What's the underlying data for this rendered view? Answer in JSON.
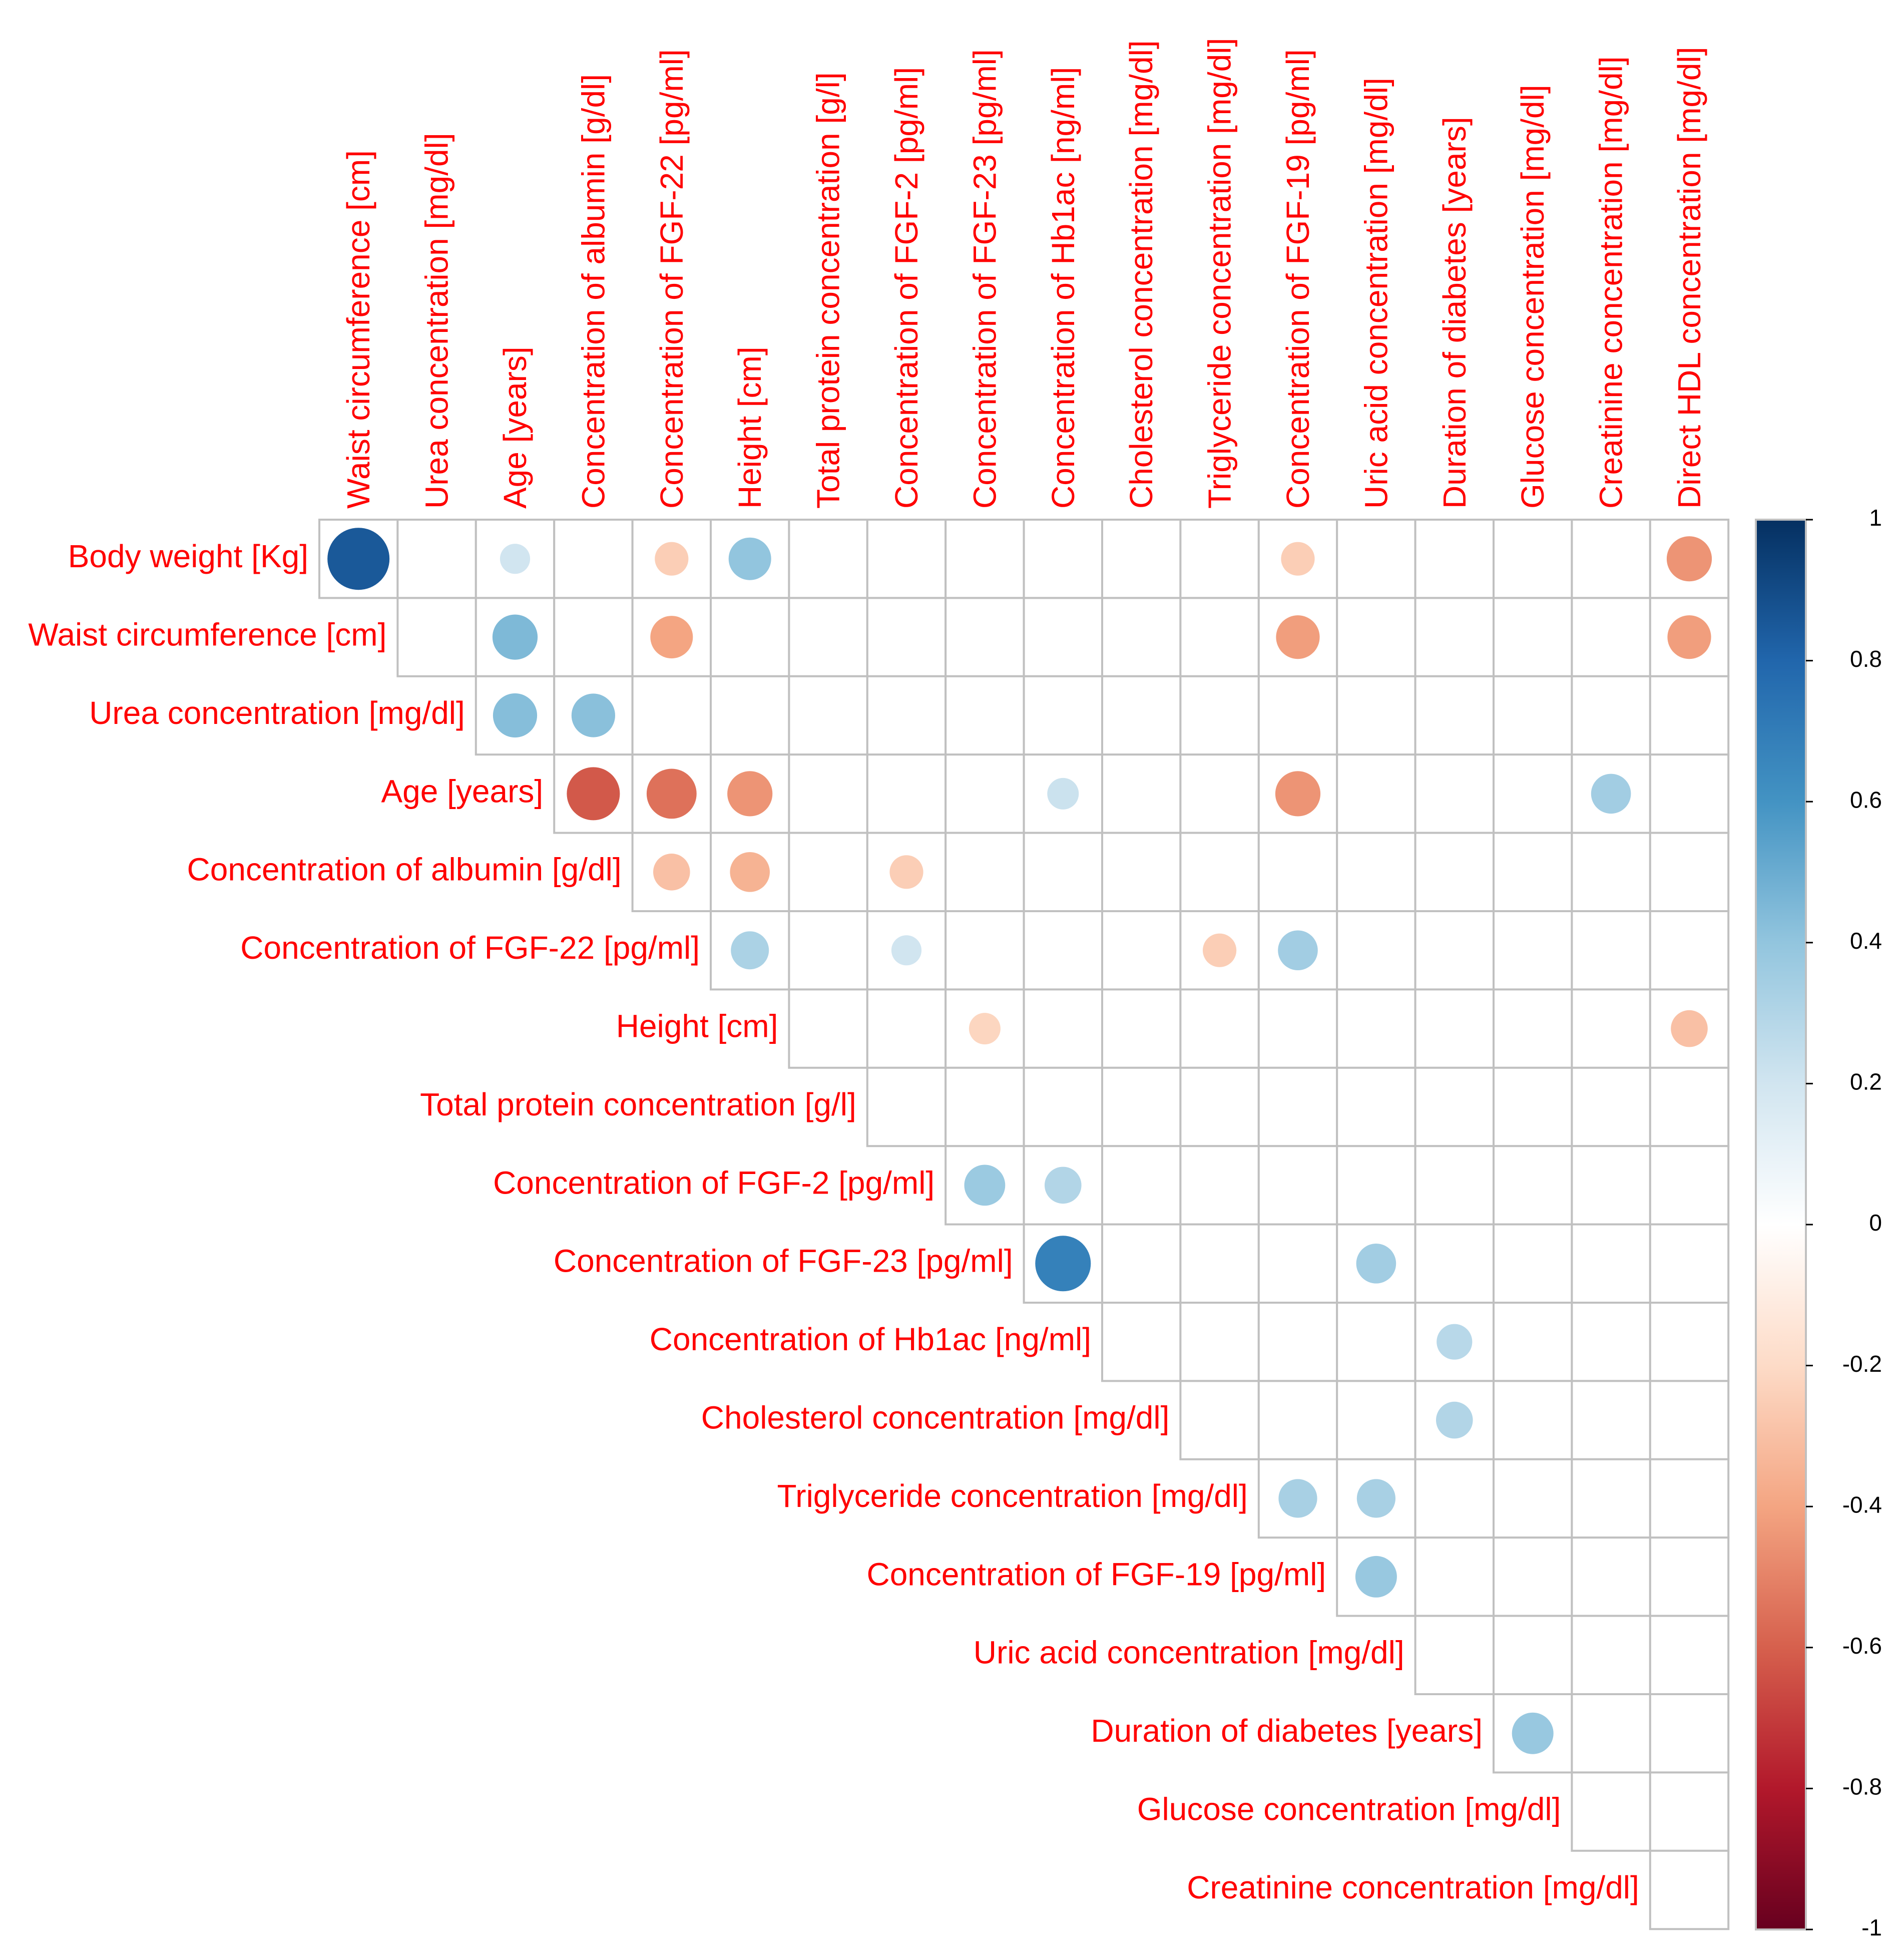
{
  "chart_data": {
    "type": "heatmap",
    "subtype": "correlation-matrix-upper-triangle-circles",
    "variables": [
      "Body weight [Kg]",
      "Waist circumference [cm]",
      "Urea concentration [mg/dl]",
      "Age [years]",
      "Concentration of albumin [g/dl]",
      "Concentration of FGF-22 [pg/ml]",
      "Height [cm]",
      "Total protein concentration [g/l]",
      "Concentration of FGF-2 [pg/ml]",
      "Concentration of FGF-23 [pg/ml]",
      "Concentration of Hb1ac [ng/ml]",
      "Cholesterol concentration [mg/dl]",
      "Triglyceride concentration  [mg/dl]",
      "Concentration of FGF-19 [pg/ml]",
      "Uric acid concentration  [mg/dl]",
      "Duration of diabetes [years]",
      "Glucose concentration  [mg/dl]",
      "Creatinine concentration  [mg/dl]",
      "Direct HDL concentration  [mg/dl]"
    ],
    "row_labels": [
      "Body weight [Kg]",
      "Waist circumference [cm]",
      "Urea concentration [mg/dl]",
      "Age [years]",
      "Concentration of albumin [g/dl]",
      "Concentration of FGF-22 [pg/ml]",
      "Height [cm]",
      "Total protein concentration [g/l]",
      "Concentration of FGF-2 [pg/ml]",
      "Concentration of FGF-23 [pg/ml]",
      "Concentration of Hb1ac [ng/ml]",
      "Cholesterol concentration [mg/dl]",
      "Triglyceride concentration  [mg/dl]",
      "Concentration of FGF-19 [pg/ml]",
      "Uric acid concentration  [mg/dl]",
      "Duration of diabetes [years]",
      "Glucose concentration  [mg/dl]",
      "Creatinine concentration  [mg/dl]"
    ],
    "col_labels": [
      "Waist circumference [cm]",
      "Urea concentration [mg/dl]",
      "Age [years]",
      "Concentration of albumin [g/dl]",
      "Concentration of FGF-22 [pg/ml]",
      "Height [cm]",
      "Total protein concentration [g/l]",
      "Concentration of FGF-2 [pg/ml]",
      "Concentration of FGF-23 [pg/ml]",
      "Concentration of Hb1ac [ng/ml]",
      "Cholesterol concentration [mg/dl]",
      "Triglyceride concentration  [mg/dl]",
      "Concentration of FGF-19 [pg/ml]",
      "Uric acid concentration  [mg/dl]",
      "Duration of diabetes [years]",
      "Glucose concentration  [mg/dl]",
      "Creatinine concentration  [mg/dl]",
      "Direct HDL concentration  [mg/dl]"
    ],
    "correlations": [
      {
        "row": "Body weight [Kg]",
        "col": "Waist circumference [cm]",
        "r": 0.85
      },
      {
        "row": "Body weight [Kg]",
        "col": "Age [years]",
        "r": 0.2
      },
      {
        "row": "Body weight [Kg]",
        "col": "Concentration of FGF-22 [pg/ml]",
        "r": -0.25
      },
      {
        "row": "Body weight [Kg]",
        "col": "Height [cm]",
        "r": 0.4
      },
      {
        "row": "Body weight [Kg]",
        "col": "Concentration of FGF-19 [pg/ml]",
        "r": -0.25
      },
      {
        "row": "Body weight [Kg]",
        "col": "Direct HDL concentration  [mg/dl]",
        "r": -0.45
      },
      {
        "row": "Waist circumference [cm]",
        "col": "Age [years]",
        "r": 0.45
      },
      {
        "row": "Waist circumference [cm]",
        "col": "Concentration of FGF-22 [pg/ml]",
        "r": -0.4
      },
      {
        "row": "Waist circumference [cm]",
        "col": "Concentration of FGF-19 [pg/ml]",
        "r": -0.42
      },
      {
        "row": "Waist circumference [cm]",
        "col": "Direct HDL concentration  [mg/dl]",
        "r": -0.42
      },
      {
        "row": "Urea concentration [mg/dl]",
        "col": "Age [years]",
        "r": 0.43
      },
      {
        "row": "Urea concentration [mg/dl]",
        "col": "Concentration of albumin [g/dl]",
        "r": 0.42
      },
      {
        "row": "Age [years]",
        "col": "Concentration of albumin [g/dl]",
        "r": -0.62
      },
      {
        "row": "Age [years]",
        "col": "Concentration of FGF-22 [pg/ml]",
        "r": -0.55
      },
      {
        "row": "Age [years]",
        "col": "Height [cm]",
        "r": -0.45
      },
      {
        "row": "Age [years]",
        "col": "Concentration of Hb1ac [ng/ml]",
        "r": 0.22
      },
      {
        "row": "Age [years]",
        "col": "Concentration of FGF-19 [pg/ml]",
        "r": -0.45
      },
      {
        "row": "Age [years]",
        "col": "Creatinine concentration  [mg/dl]",
        "r": 0.35
      },
      {
        "row": "Concentration of albumin [g/dl]",
        "col": "Concentration of FGF-22 [pg/ml]",
        "r": -0.3
      },
      {
        "row": "Concentration of albumin [g/dl]",
        "col": "Height [cm]",
        "r": -0.35
      },
      {
        "row": "Concentration of albumin [g/dl]",
        "col": "Concentration of FGF-2 [pg/ml]",
        "r": -0.25
      },
      {
        "row": "Concentration of FGF-22 [pg/ml]",
        "col": "Height [cm]",
        "r": 0.32
      },
      {
        "row": "Concentration of FGF-22 [pg/ml]",
        "col": "Concentration of FGF-2 [pg/ml]",
        "r": 0.2
      },
      {
        "row": "Concentration of FGF-22 [pg/ml]",
        "col": "Triglyceride concentration  [mg/dl]",
        "r": -0.25
      },
      {
        "row": "Concentration of FGF-22 [pg/ml]",
        "col": "Concentration of FGF-19 [pg/ml]",
        "r": 0.35
      },
      {
        "row": "Height [cm]",
        "col": "Concentration of FGF-23 [pg/ml]",
        "r": -0.22
      },
      {
        "row": "Height [cm]",
        "col": "Direct HDL concentration  [mg/dl]",
        "r": -0.3
      },
      {
        "row": "Concentration of FGF-2 [pg/ml]",
        "col": "Concentration of FGF-23 [pg/ml]",
        "r": 0.37
      },
      {
        "row": "Concentration of FGF-2 [pg/ml]",
        "col": "Concentration of Hb1ac [ng/ml]",
        "r": 0.3
      },
      {
        "row": "Concentration of FGF-23 [pg/ml]",
        "col": "Concentration of Hb1ac [ng/ml]",
        "r": 0.68
      },
      {
        "row": "Concentration of FGF-23 [pg/ml]",
        "col": "Uric acid concentration  [mg/dl]",
        "r": 0.35
      },
      {
        "row": "Concentration of Hb1ac [ng/ml]",
        "col": "Duration of diabetes [years]",
        "r": 0.28
      },
      {
        "row": "Cholesterol concentration [mg/dl]",
        "col": "Duration of diabetes [years]",
        "r": 0.3
      },
      {
        "row": "Triglyceride concentration  [mg/dl]",
        "col": "Concentration of FGF-19 [pg/ml]",
        "r": 0.33
      },
      {
        "row": "Triglyceride concentration  [mg/dl]",
        "col": "Uric acid concentration  [mg/dl]",
        "r": 0.33
      },
      {
        "row": "Concentration of FGF-19 [pg/ml]",
        "col": "Uric acid concentration  [mg/dl]",
        "r": 0.38
      },
      {
        "row": "Duration of diabetes [years]",
        "col": "Glucose concentration  [mg/dl]",
        "r": 0.38
      }
    ],
    "colorbar": {
      "range": [
        -1,
        1
      ],
      "ticks": [
        "1",
        "0.8",
        "0.6",
        "0.4",
        "0.2",
        "0",
        "-0.2",
        "-0.4",
        "-0.6",
        "-0.8",
        "-1"
      ],
      "colors": [
        "#67001f",
        "#b2182b",
        "#d6604d",
        "#f4a582",
        "#fddbc7",
        "#ffffff",
        "#d1e5f0",
        "#92c5de",
        "#4393c3",
        "#2166ac",
        "#053061"
      ]
    },
    "label_color": "#ff0000",
    "grid_color": "#c0c0c0"
  }
}
